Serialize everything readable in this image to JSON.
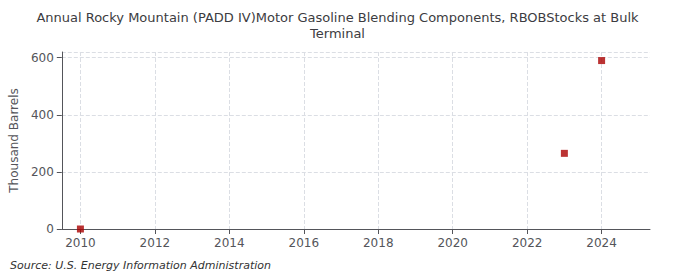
{
  "chart_data": {
    "type": "scatter",
    "title": "Annual Rocky Mountain (PADD IV)Motor Gasoline Blending Components, RBOBStocks at Bulk\nTerminal",
    "ylabel": "Thousand Barrels",
    "annotations": [
      "Source: U.S. Energy Information Administration"
    ],
    "x": [
      2010,
      2023,
      2024
    ],
    "values": [
      0,
      265,
      590
    ],
    "color": "#aa0000",
    "marker": "square",
    "xlim": [
      2009.5,
      2025.3
    ],
    "xticks": [
      2010,
      2012,
      2014,
      2016,
      2018,
      2020,
      2022,
      2024
    ],
    "ylim": [
      0,
      620
    ],
    "yticks": [
      0,
      200,
      400,
      600
    ],
    "grid": true
  }
}
